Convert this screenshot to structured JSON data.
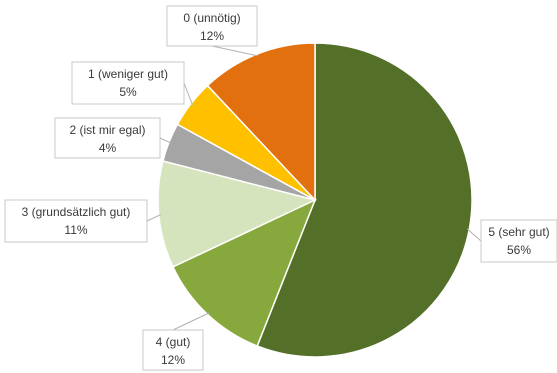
{
  "chart_data": {
    "type": "pie",
    "categories": [
      "5 (sehr gut)",
      "4 (gut)",
      "3 (grundsätzlich gut)",
      "2 (ist mir egal)",
      "1 (weniger gut)",
      "0 (unnötig)"
    ],
    "values": [
      56,
      12,
      11,
      4,
      5,
      12
    ],
    "percent_labels": [
      "56%",
      "12%",
      "11%",
      "4%",
      "5%",
      "12%"
    ],
    "colors": [
      "#546f27",
      "#86a83c",
      "#d6e4bd",
      "#a5a5a5",
      "#ffc000",
      "#e3700e"
    ],
    "start_angle_deg": 0,
    "direction": "clockwise",
    "legend": "none",
    "title": ""
  }
}
